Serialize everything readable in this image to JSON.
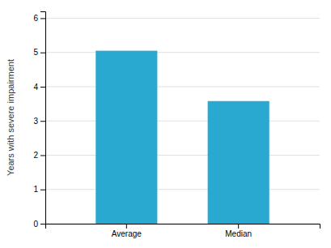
{
  "chart_data": {
    "type": "bar",
    "categories": [
      "Average",
      "Median"
    ],
    "values": [
      5.05,
      3.58
    ],
    "color": "#29a8d0",
    "ylabel": "Years with severe impairment",
    "ylim": [
      0,
      6.2
    ],
    "yticks": [
      0,
      1,
      2,
      3,
      4,
      5,
      6
    ],
    "grid": true
  }
}
